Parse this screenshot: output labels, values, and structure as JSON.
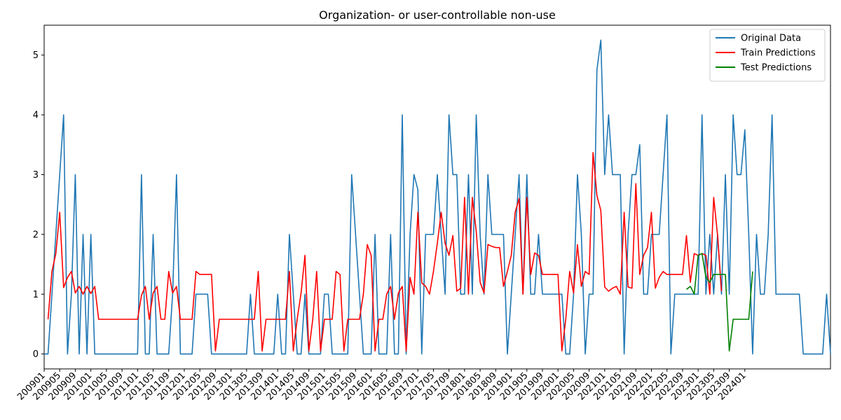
{
  "chart_data": {
    "type": "line",
    "title": "Organization- or user-controllable non-use",
    "xlabel": "",
    "ylabel": "",
    "ylim": [
      -0.25,
      5.5
    ],
    "yticks": [
      0,
      1,
      2,
      3,
      4,
      5
    ],
    "xtick_labels": [
      "200901",
      "200905",
      "200909",
      "201001",
      "201005",
      "201009",
      "201101",
      "201105",
      "201109",
      "201201",
      "201205",
      "201209",
      "201301",
      "201305",
      "201309",
      "201401",
      "201405",
      "201409",
      "201501",
      "201505",
      "201509",
      "201601",
      "201605",
      "201609",
      "201701",
      "201705",
      "201709",
      "201801",
      "201805",
      "201809",
      "201901",
      "201905",
      "201909",
      "202001",
      "202005",
      "202009",
      "202101",
      "202105",
      "202109",
      "202201",
      "202205",
      "202209",
      "202301",
      "202305",
      "202309",
      "202401"
    ],
    "legend_position": "top-right",
    "series": [
      {
        "name": "Original Data",
        "color": "#1f77b4",
        "start": "2009-01",
        "values": [
          0,
          0,
          1,
          2,
          3,
          4,
          0,
          1,
          3,
          0,
          2,
          0,
          2,
          0,
          0,
          0,
          0,
          0,
          0,
          0,
          0,
          0,
          0,
          0,
          0,
          3,
          0,
          0,
          2,
          0,
          0,
          0,
          0,
          1,
          3,
          0,
          0,
          0,
          0,
          1,
          1,
          1,
          1,
          0,
          0,
          0,
          0,
          0,
          0,
          0,
          0,
          0,
          0,
          1,
          0,
          0,
          0,
          0,
          0,
          0,
          1,
          0,
          0,
          2,
          1,
          0,
          0,
          1,
          0,
          0,
          0,
          0,
          1,
          1,
          0,
          0,
          0,
          0,
          0,
          3,
          2,
          1,
          0,
          0,
          0,
          2,
          0,
          0,
          0,
          2,
          0,
          0,
          4,
          0,
          2,
          3,
          2.75,
          0,
          2,
          2,
          2,
          3,
          2,
          1,
          4,
          3,
          3,
          1,
          1,
          3,
          1,
          4,
          2,
          1,
          3,
          2,
          2,
          2,
          2,
          0,
          1,
          2,
          3,
          1,
          3,
          1,
          1,
          2,
          1,
          1,
          1,
          1,
          1,
          1,
          0,
          0,
          1,
          3,
          2,
          0,
          1,
          1,
          4.75,
          5.25,
          3,
          4,
          3,
          3,
          3,
          0,
          2,
          3,
          3,
          3.5,
          1,
          1,
          2,
          2,
          2,
          3,
          4,
          0,
          1,
          1,
          1,
          1,
          1,
          1,
          1,
          4,
          1,
          2,
          1,
          2,
          1,
          3,
          1,
          4,
          3,
          3,
          3.75,
          2,
          0,
          2,
          1,
          1,
          2,
          4,
          1,
          1,
          1,
          1,
          1,
          1,
          1,
          0,
          0,
          0,
          0,
          0,
          0,
          1,
          0
        ]
      },
      {
        "name": "Train Predictions",
        "color": "#ff0000",
        "start": "2009-02",
        "values": [
          0.58,
          1.38,
          1.68,
          2.37,
          1.11,
          1.28,
          1.38,
          1.02,
          1.13,
          1.0,
          1.13,
          1.01,
          1.13,
          0.58,
          0.58,
          0.58,
          0.58,
          0.58,
          0.58,
          0.58,
          0.58,
          0.58,
          0.58,
          0.58,
          0.98,
          1.13,
          0.58,
          1.02,
          1.13,
          0.58,
          0.58,
          1.38,
          1.02,
          1.13,
          0.58,
          0.58,
          0.58,
          0.58,
          1.38,
          1.33,
          1.33,
          1.33,
          1.33,
          0.05,
          0.58,
          0.58,
          0.58,
          0.58,
          0.58,
          0.58,
          0.58,
          0.58,
          0.58,
          0.58,
          1.38,
          0.05,
          0.58,
          0.58,
          0.58,
          0.58,
          0.58,
          0.58,
          1.38,
          0.05,
          0.58,
          1.02,
          1.65,
          0.05,
          0.58,
          1.38,
          0.05,
          0.58,
          0.58,
          0.58,
          1.38,
          1.33,
          0.05,
          0.58,
          0.58,
          0.58,
          0.58,
          1.0,
          1.83,
          1.65,
          0.05,
          0.58,
          0.58,
          1.0,
          1.13,
          0.58,
          1.02,
          1.13,
          0.05,
          1.28,
          1.0,
          2.37,
          1.19,
          1.13,
          1.0,
          1.38,
          1.85,
          2.37,
          1.85,
          1.65,
          1.98,
          1.05,
          1.1,
          2.62,
          1.0,
          2.62,
          2.05,
          1.2,
          1.02,
          1.83,
          1.8,
          1.78,
          1.78,
          1.13,
          1.38,
          1.65,
          2.37,
          2.6,
          1.0,
          2.62,
          1.33,
          1.69,
          1.65,
          1.33,
          1.33,
          1.33,
          1.33,
          1.33,
          0.05,
          0.58,
          1.38,
          1.02,
          1.83,
          1.13,
          1.38,
          1.33,
          3.37,
          2.65,
          2.4,
          1.12,
          1.05,
          1.1,
          1.13,
          1.0,
          2.37,
          1.12,
          1.1,
          2.85,
          1.33,
          1.65,
          1.78,
          2.37,
          1.1,
          1.28,
          1.38,
          1.33,
          1.33,
          1.33,
          1.33,
          1.33,
          1.98,
          1.2,
          1.68,
          1.65,
          1.68,
          1.65,
          1.0,
          2.62,
          1.98,
          1.05
        ]
      },
      {
        "name": "Test Predictions",
        "color": "#008000",
        "start": "2022-10",
        "values": [
          1.08,
          1.13,
          1.0,
          1.65,
          1.68,
          1.28,
          1.2,
          1.33,
          1.33,
          1.33,
          1.33,
          0.05,
          0.58,
          0.58,
          0.58,
          0.58,
          0.58,
          1.38
        ]
      }
    ]
  }
}
